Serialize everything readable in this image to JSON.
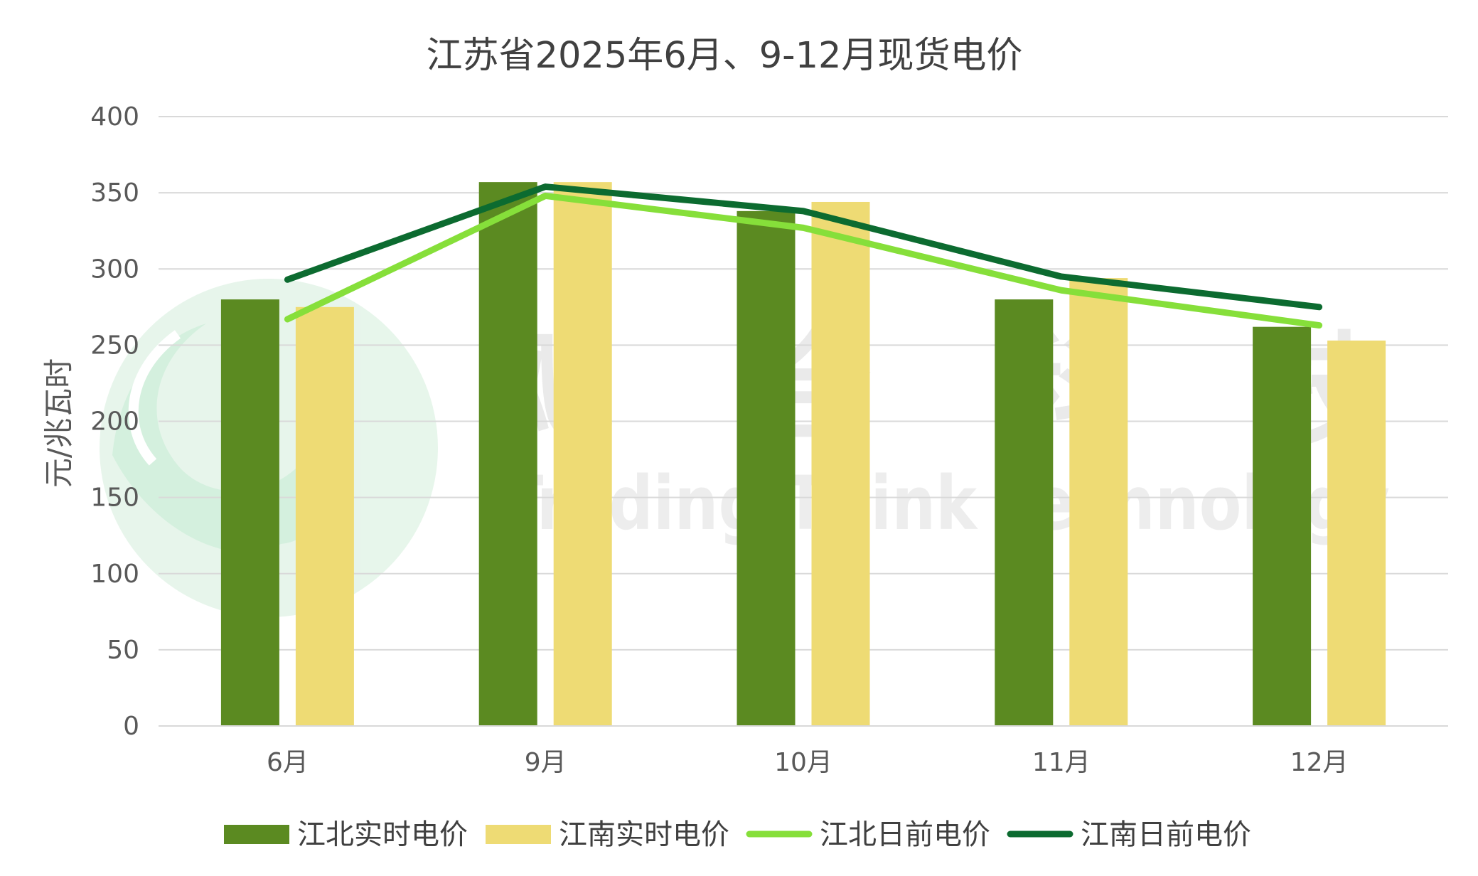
{
  "chart_data": {
    "type": "bar",
    "title": "江苏省2025年6月、9-12月现货电价",
    "ylabel": "元/兆瓦时",
    "xlabel": "",
    "ylim": [
      0,
      400
    ],
    "yticks": [
      0,
      50,
      100,
      150,
      200,
      250,
      300,
      350,
      400
    ],
    "ytick_labels": [
      "0",
      "50",
      "100",
      "150",
      "200",
      "250",
      "300",
      "350",
      "400"
    ],
    "grid": true,
    "legend_position": "bottom",
    "categories": [
      "6月",
      "9月",
      "10月",
      "11月",
      "12月"
    ],
    "series": [
      {
        "name": "江北实时电价",
        "type": "bar",
        "color": "#5B8A21",
        "values": [
          280,
          357,
          338,
          280,
          262
        ]
      },
      {
        "name": "江南实时电价",
        "type": "bar",
        "color": "#EEDB74",
        "values": [
          275,
          357,
          344,
          294,
          253
        ]
      },
      {
        "name": "江北日前电价",
        "type": "line",
        "color": "#86DF3A",
        "values": [
          267,
          348,
          327,
          286,
          263
        ]
      },
      {
        "name": "江南日前电价",
        "type": "line",
        "color": "#0C6B30",
        "values": [
          293,
          354,
          338,
          295,
          275
        ]
      }
    ]
  },
  "watermark": {
    "cn_chars": [
      "飓",
      "合",
      "科",
      "技"
    ],
    "en_text": "Trading Think Technology",
    "logo_colors": [
      "#cdeed9",
      "#e3f4e8"
    ]
  }
}
